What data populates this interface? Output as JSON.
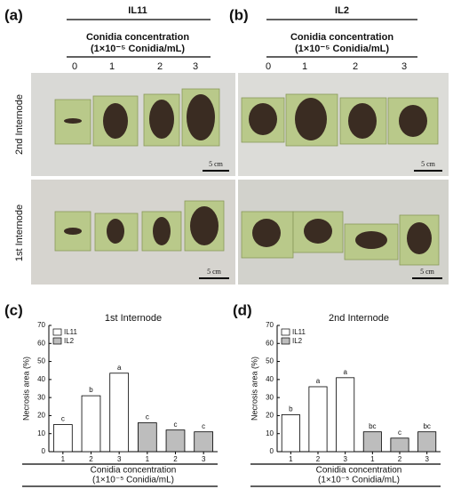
{
  "photos": {
    "panels": [
      {
        "label": "(a)",
        "line": "IL11"
      },
      {
        "label": "(b)",
        "line": "IL2"
      }
    ],
    "conc_title": "Conidia concentration",
    "conc_unit": "(1×10⁻⁵ Conidia/mL)",
    "doses": [
      "0",
      "1",
      "2",
      "3"
    ],
    "rows": [
      "2nd Internode",
      "1st Internode"
    ],
    "scale": "5 cm"
  },
  "chart_data": [
    {
      "type": "bar",
      "panel_label": "(c)",
      "title": "1st Internode",
      "y_label": "Necrosis area (%)",
      "x_label": "Conidia concentration",
      "x_label_unit": "(1×10⁻⁵ Conidia/mL)",
      "categories": [
        "1",
        "2",
        "3",
        "1",
        "2",
        "3"
      ],
      "series": [
        {
          "name": "IL11",
          "color": "#ffffff",
          "values": [
            15,
            31,
            43.5,
            null,
            null,
            null
          ]
        },
        {
          "name": "IL2",
          "color": "#bdbdbd",
          "values": [
            null,
            null,
            null,
            16,
            12,
            11
          ]
        }
      ],
      "annotations": [
        "c",
        "b",
        "a",
        "c",
        "c",
        "c"
      ],
      "ylim": [
        0,
        70
      ],
      "yticks": [
        0,
        10,
        20,
        30,
        40,
        50,
        60,
        70
      ],
      "legend": "upper left"
    },
    {
      "type": "bar",
      "panel_label": "(d)",
      "title": "2nd Internode",
      "y_label": "Necrosis area (%)",
      "x_label": "Conidia concentration",
      "x_label_unit": "(1×10⁻⁵ Conidia/mL)",
      "categories": [
        "1",
        "2",
        "3",
        "1",
        "2",
        "3"
      ],
      "series": [
        {
          "name": "IL11",
          "color": "#ffffff",
          "values": [
            20.5,
            36,
            41,
            null,
            null,
            null
          ]
        },
        {
          "name": "IL2",
          "color": "#bdbdbd",
          "values": [
            null,
            null,
            null,
            11,
            7.5,
            11
          ]
        }
      ],
      "annotations": [
        "b",
        "a",
        "a",
        "bc",
        "c",
        "bc"
      ],
      "ylim": [
        0,
        70
      ],
      "yticks": [
        0,
        10,
        20,
        30,
        40,
        50,
        60,
        70
      ],
      "legend": "upper left"
    }
  ]
}
